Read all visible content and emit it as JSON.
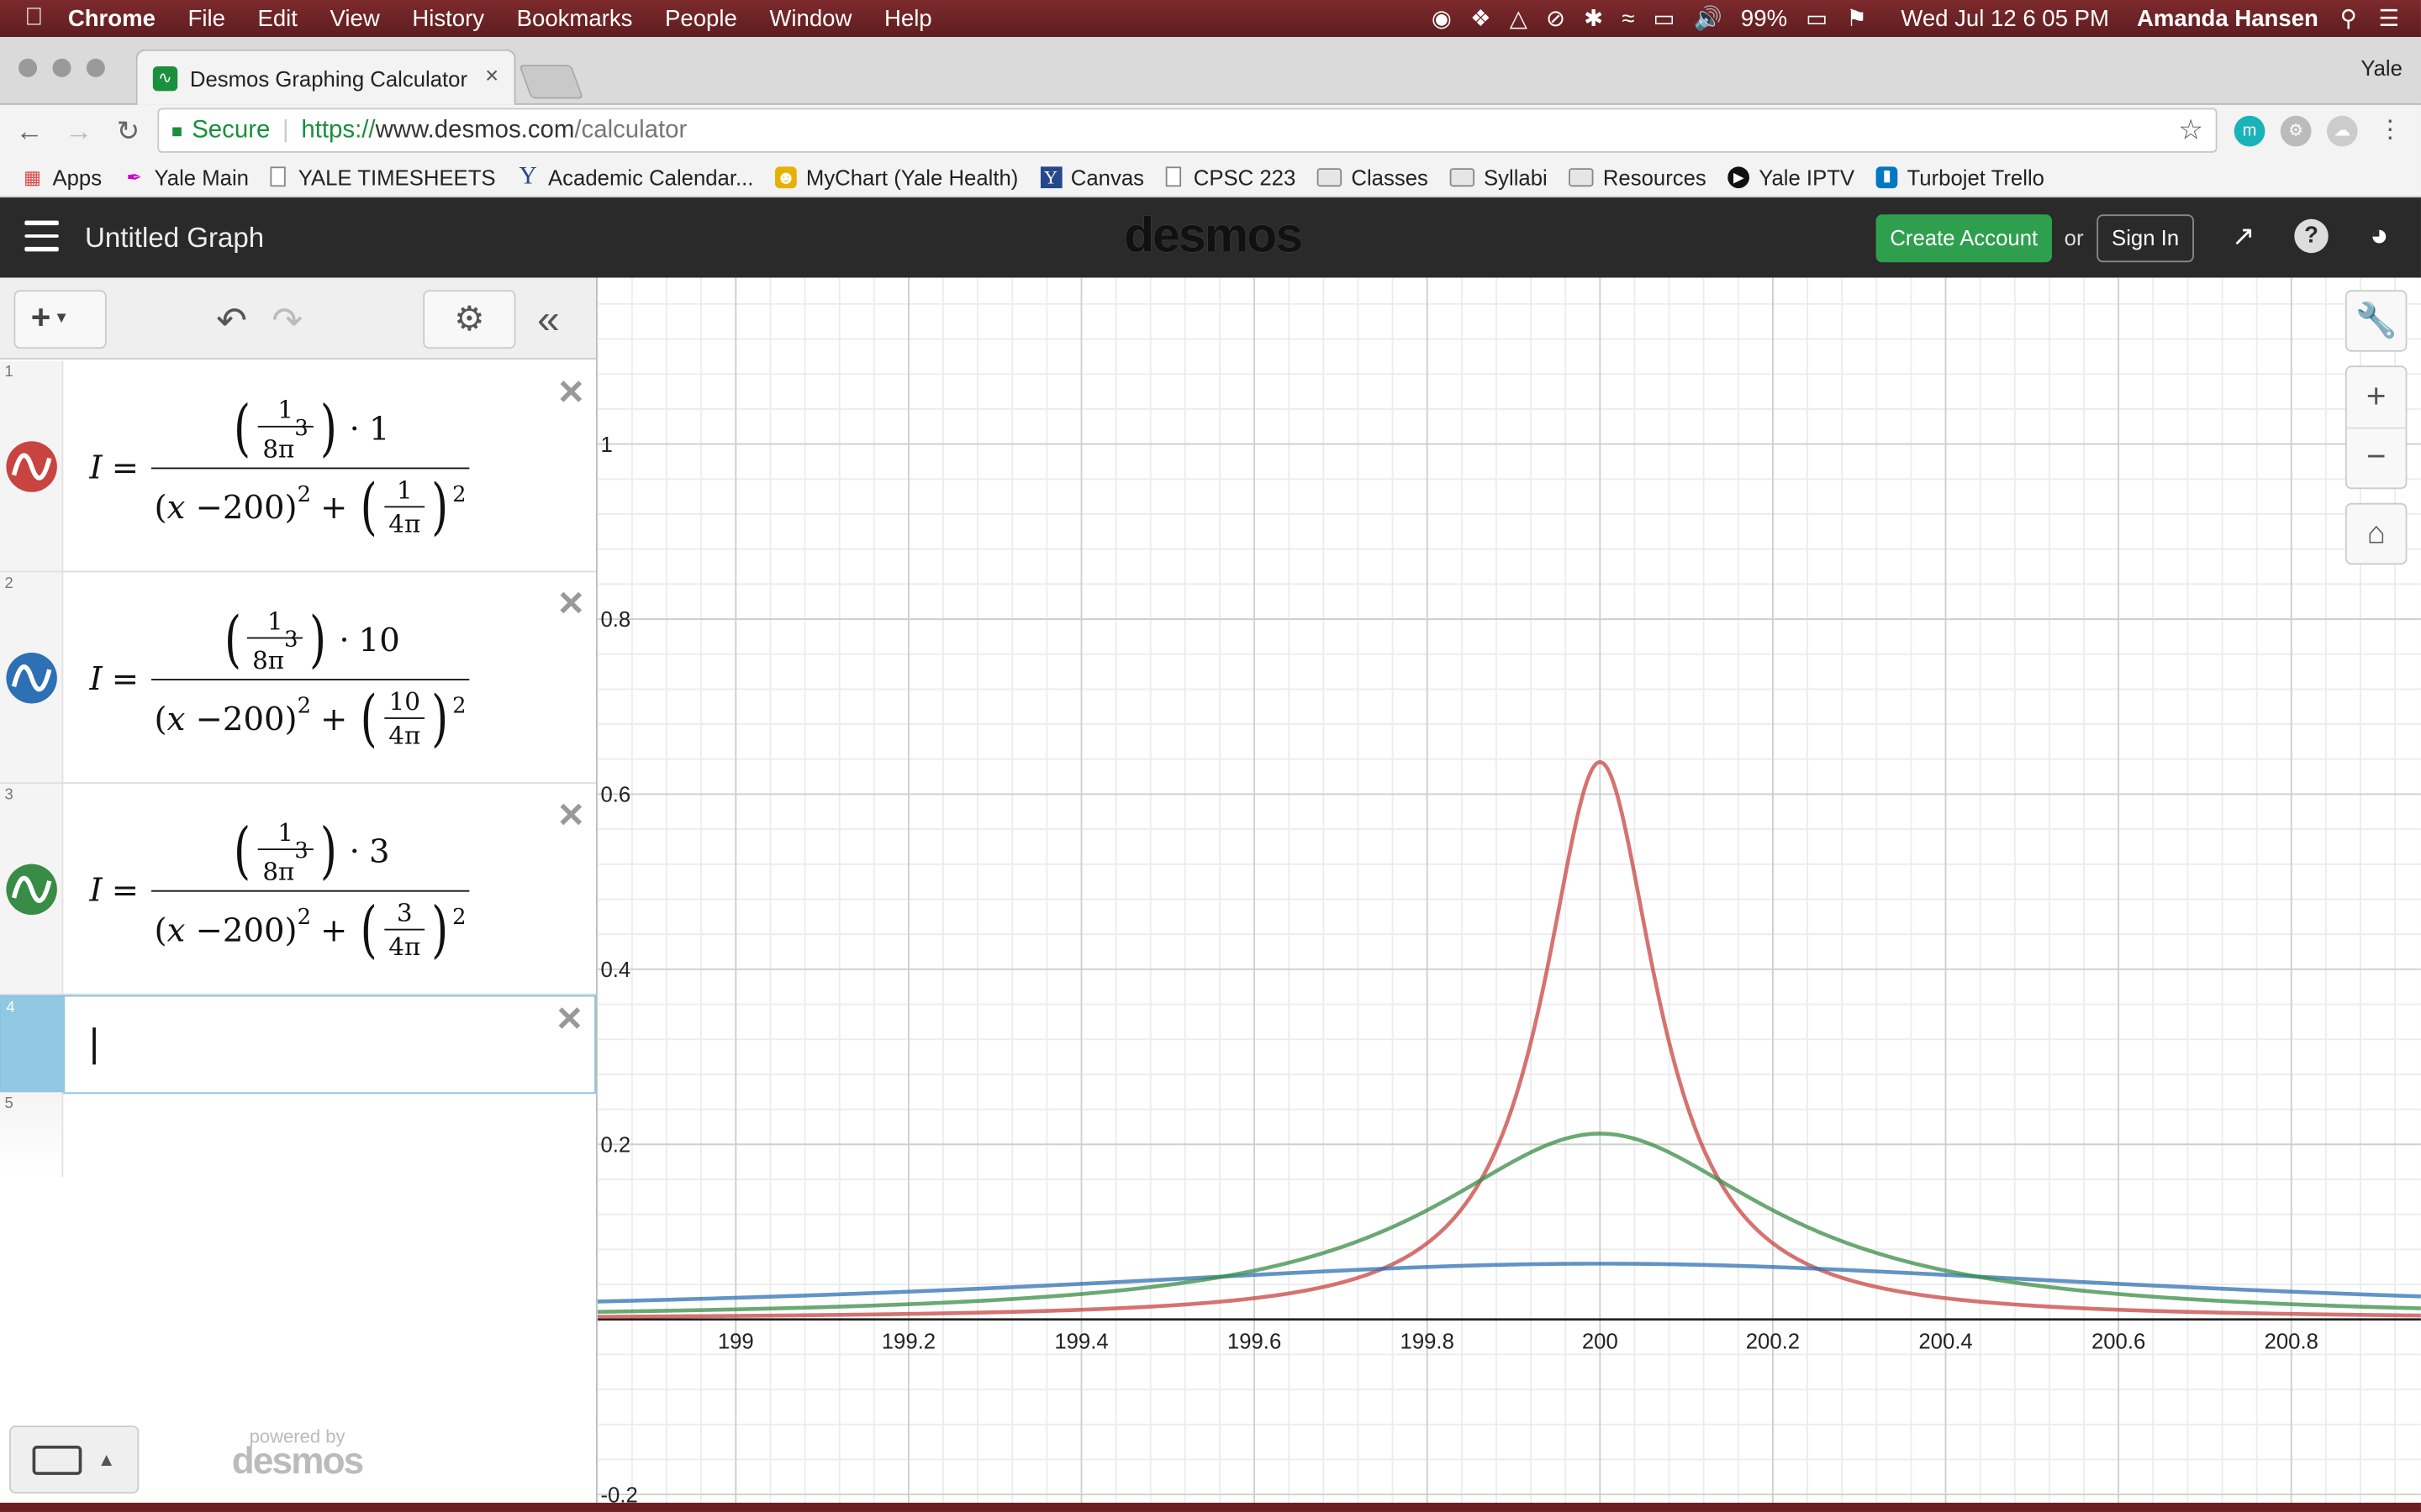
{
  "menubar": {
    "app": "Chrome",
    "items": [
      "File",
      "Edit",
      "View",
      "History",
      "Bookmarks",
      "People",
      "Window",
      "Help"
    ],
    "battery": "99%",
    "datetime": "Wed Jul 12  6 05 PM",
    "user": "Amanda Hansen"
  },
  "browser": {
    "tab_title": "Desmos Graphing Calculator",
    "profile_name": "Yale",
    "secure_label": "Secure",
    "url_scheme": "https://",
    "url_host": "www.desmos.com",
    "url_path": "/calculator"
  },
  "bookmarks": [
    "Apps",
    "Yale Main",
    "YALE TIMESHEETS",
    "Academic Calendar...",
    "MyChart (Yale Health)",
    "Canvas",
    "CPSC 223",
    "Classes",
    "Syllabi",
    "Resources",
    "Yale IPTV",
    "Turbojet Trello"
  ],
  "desmos": {
    "graph_title": "Untitled Graph",
    "logo": "desmos",
    "create_account": "Create Account",
    "or": "or",
    "sign_in": "Sign In",
    "powered_by": "powered by",
    "powered_logo": "desmos"
  },
  "expressions": [
    {
      "index": "1",
      "color": "#c74440",
      "top_num": "1",
      "k": "1",
      "shift": "200",
      "shift_num": "1"
    },
    {
      "index": "2",
      "color": "#2d70b3",
      "top_num": "1",
      "k": "10",
      "shift": "200",
      "shift_num": "10"
    },
    {
      "index": "3",
      "color": "#388c46",
      "top_num": "1",
      "k": "3",
      "shift": "200",
      "shift_num": "3"
    },
    {
      "index": "4",
      "empty": true
    },
    {
      "index": "5",
      "empty": true
    }
  ],
  "expression_text": {
    "lhs": "I",
    "eq": "=",
    "cdot": "·",
    "x_minus": "x − ",
    "plus": "+",
    "sq": "2",
    "den_top": "8π",
    "cube": "3",
    "den_shift": "4π"
  },
  "chart_data": {
    "type": "line",
    "xlim": [
      198.84,
      200.95
    ],
    "ylim": [
      -0.22,
      1.19
    ],
    "grid": true,
    "x_ticks": [
      199,
      199.2,
      199.4,
      199.6,
      199.8,
      200,
      200.2,
      200.4,
      200.6,
      200.8
    ],
    "x_tick_labels": [
      "199",
      "199.2",
      "199.4",
      "199.6",
      "199.8",
      "200",
      "200.2",
      "200.4",
      "200.6",
      "200.8"
    ],
    "y_ticks": [
      -0.2,
      0.2,
      0.4,
      0.6,
      0.8,
      1
    ],
    "y_tick_labels": [
      "-0.2",
      "0.2",
      "0.4",
      "0.6",
      "0.8",
      "1"
    ],
    "series": [
      {
        "k": 1,
        "color": "#c74440",
        "peak": 0.633
      },
      {
        "k": 10,
        "color": "#2d70b3",
        "peak": 0.063
      },
      {
        "k": 3,
        "color": "#388c46",
        "peak": 0.211
      }
    ]
  }
}
